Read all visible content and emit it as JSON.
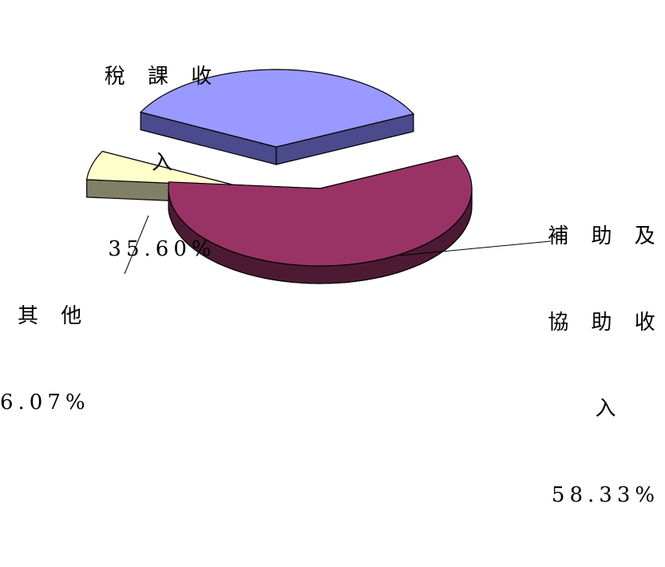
{
  "chart_data": {
    "type": "pie",
    "style": "3d-exploded",
    "title": "",
    "slices": [
      {
        "label": "稅課收入",
        "value": 35.6,
        "percent_label": "35.60%",
        "color": "#9999ff",
        "side_color": "#4a4a8c"
      },
      {
        "label": "補助及協助收入",
        "value": 58.33,
        "percent_label": "58.33%",
        "color": "#993366",
        "side_color": "#4d1a33"
      },
      {
        "label": "其他",
        "value": 6.07,
        "percent_label": "6.07%",
        "color": "#ffffcc",
        "side_color": "#808066"
      }
    ],
    "legend": "none",
    "labels": {
      "tax": {
        "line1": "稅 課 收",
        "line2": "入",
        "pct": "35.60%"
      },
      "subsidy": {
        "line1": "補 助 及",
        "line2": "協 助 收",
        "line3": "入",
        "pct": "58.33%"
      },
      "other": {
        "line1": "其 他",
        "pct": "6.07%"
      }
    }
  }
}
